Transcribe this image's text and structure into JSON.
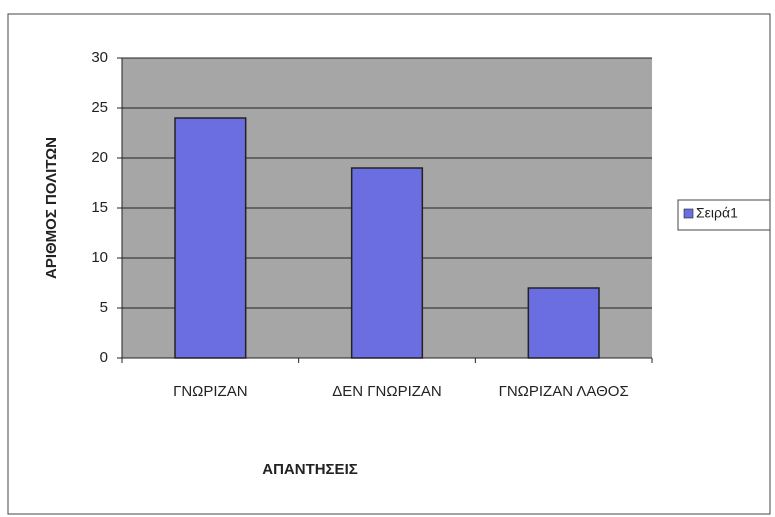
{
  "chart_data": {
    "type": "bar",
    "categories": [
      "ΓΝΩΡΙΖΑΝ",
      "ΔΕΝ ΓΝΩΡΙΖΑΝ",
      "ΓΝΩΡΙΖΑΝ ΛΑΘΟΣ"
    ],
    "values": [
      24,
      19,
      7
    ],
    "color": "#6a6ee0",
    "y_label": "ΑΡΙΘΜΟΣ ΠΟΛΙΤΩΝ",
    "x_label": "ΑΠΑΝΤΗΣΕΙΣ",
    "series_name": "Σειρά1",
    "ylim": [
      0,
      30
    ],
    "yticks": [
      0,
      5,
      10,
      15,
      20,
      25,
      30
    ],
    "grid": true,
    "legend": "right"
  }
}
